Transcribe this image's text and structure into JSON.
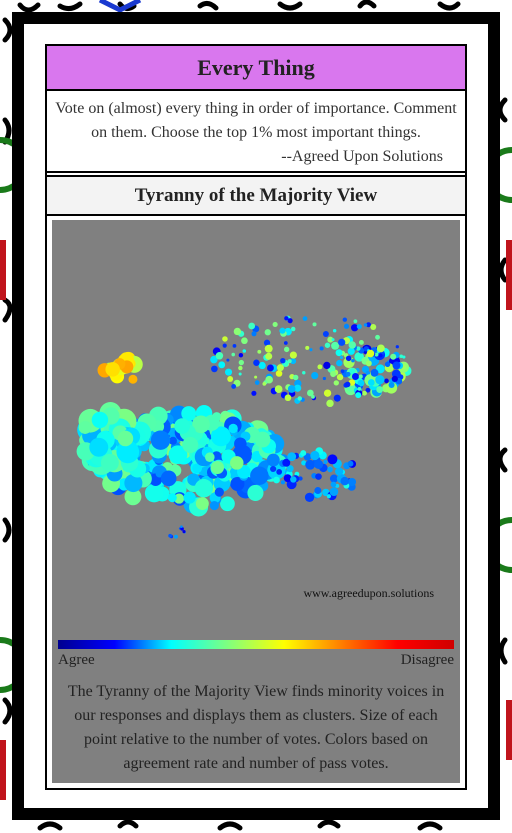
{
  "header": {
    "title": "Every Thing",
    "description": "Vote on (almost) every thing in order of importance. Comment on them. Choose the top 1% most important things.",
    "attribution": "--Agreed Upon Solutions"
  },
  "section": {
    "title": "Tyranny of the Majority View",
    "watermark": "www.agreedupon.solutions",
    "scale_low": "Agree",
    "scale_high": "Disagree",
    "caption": "The Tyranny of the Majority View finds minority voices in our responses and displays them as clusters. Size of each point relative to the number of votes. Colors based on agreement rate and number of pass votes."
  }
}
